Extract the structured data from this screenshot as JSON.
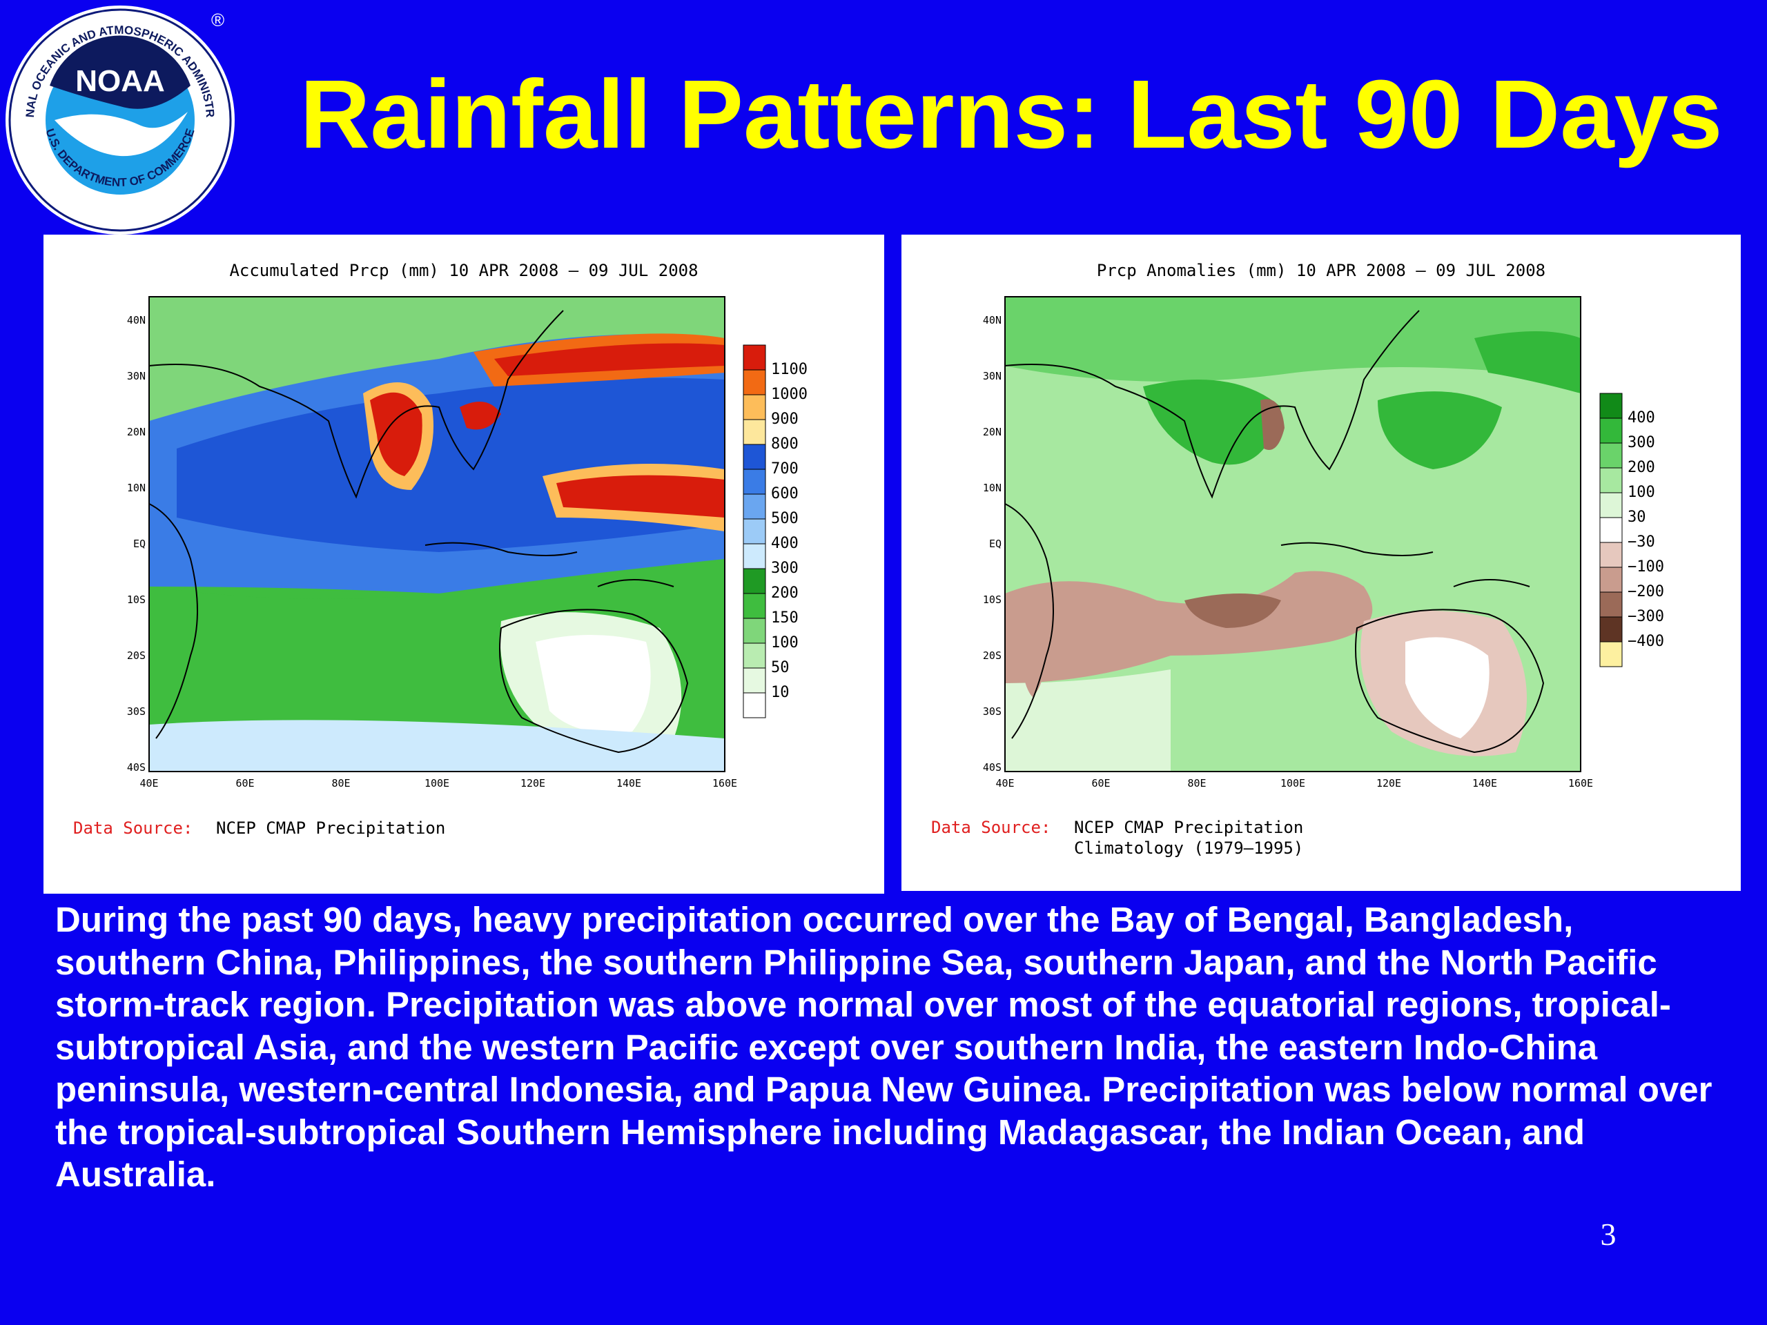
{
  "logo": {
    "ring_text_top": "NATIONAL OCEANIC AND ATMOSPHERIC ADMINISTRATION",
    "ring_text_bottom": "U.S. DEPARTMENT OF COMMERCE",
    "center_text": "NOAA",
    "registered": "®"
  },
  "slide": {
    "title": "Rainfall Patterns: Last 90 Days",
    "body": "During the past 90 days, heavy precipitation occurred over the Bay of Bengal, Bangladesh, southern China, Philippines, the southern Philippine Sea, southern Japan, and the North Pacific storm-track region. Precipitation was above normal over most of the equatorial regions, tropical-subtropical Asia, and the western Pacific except over southern India, the eastern Indo-China peninsula, western-central Indonesia, and Papua New Guinea. Precipitation was below normal over the tropical-subtropical Southern Hemisphere including Madagascar, the Indian Ocean, and Australia.",
    "page_number": "3"
  },
  "maps": {
    "lat_labels": [
      "40N",
      "30N",
      "20N",
      "10N",
      "EQ",
      "10S",
      "20S",
      "30S",
      "40S"
    ],
    "lon_labels": [
      "40E",
      "60E",
      "80E",
      "100E",
      "120E",
      "140E",
      "160E"
    ],
    "left": {
      "title": "Accumulated Prcp (mm) 10 APR 2008 – 09 JUL 2008",
      "source_label": "Data Source:",
      "source_line1": "NCEP CMAP Precipitation",
      "source_line2": "",
      "legend": [
        {
          "label": "1100",
          "color": "#d81c0c"
        },
        {
          "label": "1000",
          "color": "#f26a14"
        },
        {
          "label": "900",
          "color": "#fdbd5a"
        },
        {
          "label": "800",
          "color": "#fde79c"
        },
        {
          "label": "700",
          "color": "#1e56d6"
        },
        {
          "label": "600",
          "color": "#3a7ce6"
        },
        {
          "label": "500",
          "color": "#6aa6f0"
        },
        {
          "label": "400",
          "color": "#9ccbf7"
        },
        {
          "label": "300",
          "color": "#cdeafd"
        },
        {
          "label": "200",
          "color": "#1f9a24"
        },
        {
          "label": "150",
          "color": "#3fbd3f"
        },
        {
          "label": "100",
          "color": "#7fd67a"
        },
        {
          "label": "50",
          "color": "#b9ecb1"
        },
        {
          "label": "10",
          "color": "#e6f9e1"
        },
        {
          "label": "",
          "color": "#ffffff"
        }
      ]
    },
    "right": {
      "title": "Prcp Anomalies (mm) 10 APR 2008 – 09 JUL 2008",
      "source_label": "Data Source:",
      "source_line1": "NCEP CMAP Precipitation",
      "source_line2": "Climatology (1979–1995)",
      "legend": [
        {
          "label": "400",
          "color": "#118a18"
        },
        {
          "label": "300",
          "color": "#33b83a"
        },
        {
          "label": "200",
          "color": "#6ad36a"
        },
        {
          "label": "100",
          "color": "#a7e8a0"
        },
        {
          "label": "30",
          "color": "#ddf6d7"
        },
        {
          "label": "−30",
          "color": "#ffffff"
        },
        {
          "label": "−100",
          "color": "#e6c8be"
        },
        {
          "label": "−200",
          "color": "#c99c8e"
        },
        {
          "label": "−300",
          "color": "#9b6a58"
        },
        {
          "label": "−400",
          "color": "#5e3424"
        },
        {
          "label": "",
          "color": "#fdf0a0"
        }
      ]
    }
  }
}
